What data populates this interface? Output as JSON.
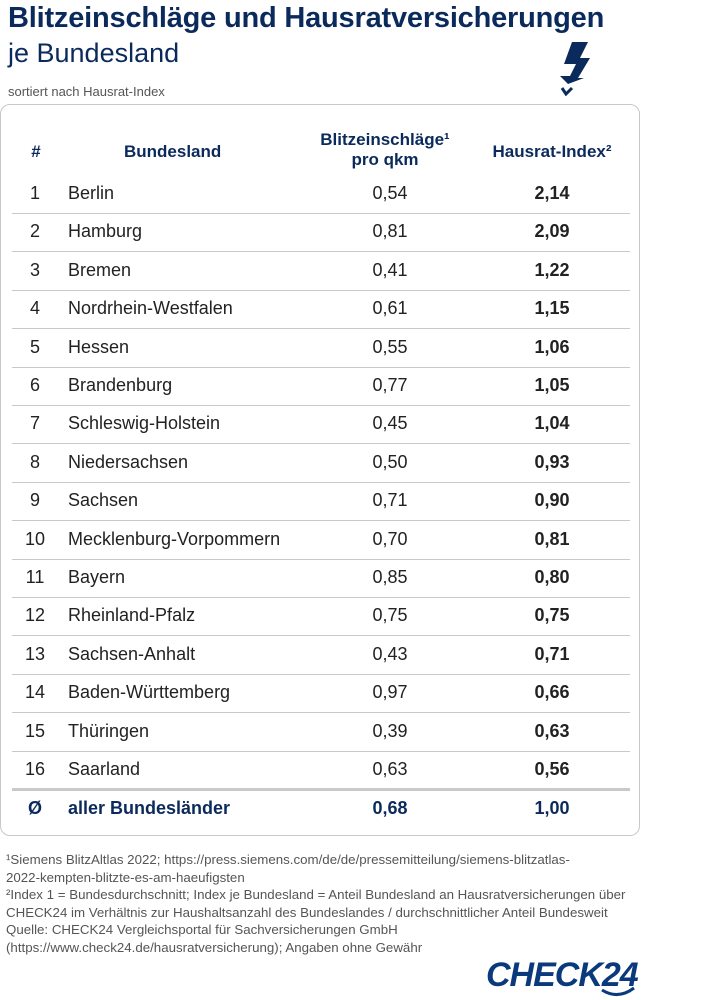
{
  "title": "Blitzeinschläge und Hausratversicherungen",
  "subtitle": "je Bundesland",
  "sorted_note": "sortiert nach Hausrat-Index",
  "icon": "lightning-bolt-icon",
  "table": {
    "headers": {
      "num": "#",
      "name": "Bundesland",
      "val_line1": "Blitzeinschläge¹",
      "val_line2": "pro qkm",
      "idx": "Hausrat-Index²"
    },
    "rows": [
      {
        "num": "1",
        "name": "Berlin",
        "val": "0,54",
        "idx": "2,14"
      },
      {
        "num": "2",
        "name": "Hamburg",
        "val": "0,81",
        "idx": "2,09"
      },
      {
        "num": "3",
        "name": "Bremen",
        "val": "0,41",
        "idx": "1,22"
      },
      {
        "num": "4",
        "name": "Nordrhein-Westfalen",
        "val": "0,61",
        "idx": "1,15"
      },
      {
        "num": "5",
        "name": "Hessen",
        "val": "0,55",
        "idx": "1,06"
      },
      {
        "num": "6",
        "name": "Brandenburg",
        "val": "0,77",
        "idx": "1,05"
      },
      {
        "num": "7",
        "name": "Schleswig-Holstein",
        "val": "0,45",
        "idx": "1,04"
      },
      {
        "num": "8",
        "name": "Niedersachsen",
        "val": "0,50",
        "idx": "0,93"
      },
      {
        "num": "9",
        "name": "Sachsen",
        "val": "0,71",
        "idx": "0,90"
      },
      {
        "num": "10",
        "name": "Mecklenburg-Vorpommern",
        "val": "0,70",
        "idx": "0,81"
      },
      {
        "num": "11",
        "name": "Bayern",
        "val": "0,85",
        "idx": "0,80"
      },
      {
        "num": "12",
        "name": "Rheinland-Pfalz",
        "val": "0,75",
        "idx": "0,75"
      },
      {
        "num": "13",
        "name": "Sachsen-Anhalt",
        "val": "0,43",
        "idx": "0,71"
      },
      {
        "num": "14",
        "name": "Baden-Württemberg",
        "val": "0,97",
        "idx": "0,66"
      },
      {
        "num": "15",
        "name": "Thüringen",
        "val": "0,39",
        "idx": "0,63"
      },
      {
        "num": "16",
        "name": "Saarland",
        "val": "0,63",
        "idx": "0,56"
      }
    ],
    "average": {
      "num": "Ø",
      "name": "aller Bundesländer",
      "val": "0,68",
      "idx": "1,00"
    }
  },
  "footnotes": [
    "¹Siemens BlitzAltlas 2022; https://press.siemens.com/de/de/pressemitteilung/siemens-blitzatlas-",
    "2022-kempten-blitzte-es-am-haeufigsten",
    "²Index 1 = Bundesdurchschnitt; Index je Bundesland = Anteil Bundesland an Hausratversicherungen über",
    "CHECK24 im Verhältnis zur Haushaltsanzahl des Bundeslandes / durchschnittlicher Anteil Bundesweit",
    "Quelle: CHECK24 Vergleichsportal für Sachversicherungen GmbH",
    "(https://www.check24.de/hausratversicherung); Angaben ohne Gewähr"
  ],
  "logo": "CHECK24",
  "colors": {
    "brand_navy": "#0b2a5c",
    "logo_blue": "#0b3a7c",
    "divider": "#c9c9c9"
  }
}
